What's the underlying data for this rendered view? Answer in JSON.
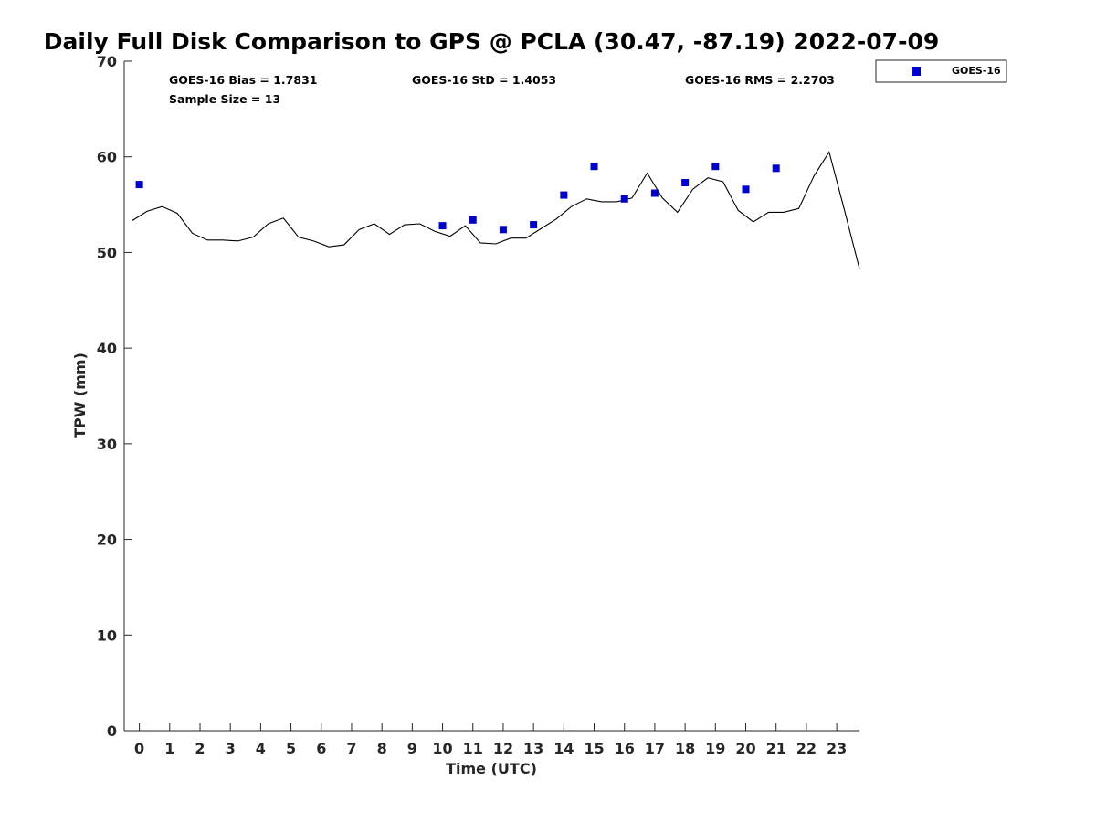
{
  "chart_data": {
    "type": "scatter",
    "title": "Daily Full Disk Comparison to GPS @ PCLA (30.47, -87.19) 2022-07-09",
    "xlabel": "Time (UTC)",
    "ylabel": "TPW (mm)",
    "xlim": [
      -0.5,
      23.75
    ],
    "ylim": [
      0,
      70
    ],
    "x_ticks": [
      "0",
      "1",
      "2",
      "3",
      "4",
      "5",
      "6",
      "7",
      "8",
      "9",
      "10",
      "11",
      "12",
      "13",
      "14",
      "15",
      "16",
      "17",
      "18",
      "19",
      "20",
      "21",
      "22",
      "23"
    ],
    "y_ticks": [
      "0",
      "10",
      "20",
      "30",
      "40",
      "50",
      "60",
      "70"
    ],
    "grid": false,
    "legend_position": "outside-top-right",
    "stats": [
      "GOES-16 Bias = 1.7831",
      "GOES-16 StD = 1.4053",
      "GOES-16 RMS = 2.2703",
      "Sample Size = 13"
    ],
    "series": [
      {
        "name": "GOES-16",
        "kind": "scatter",
        "marker": "square",
        "color": "#0000cc",
        "points": [
          [
            0,
            57.1
          ],
          [
            10,
            52.8
          ],
          [
            11,
            53.4
          ],
          [
            12,
            52.4
          ],
          [
            13,
            52.9
          ],
          [
            14,
            56.0
          ],
          [
            15,
            59.0
          ],
          [
            16,
            55.6
          ],
          [
            17,
            56.2
          ],
          [
            18,
            57.3
          ],
          [
            19,
            59.0
          ],
          [
            20,
            56.6
          ],
          [
            21,
            58.8
          ]
        ]
      },
      {
        "kind": "line",
        "color": "#000000",
        "points": [
          [
            -0.25,
            53.3
          ],
          [
            0.25,
            54.3
          ],
          [
            0.75,
            54.8
          ],
          [
            1.25,
            54.1
          ],
          [
            1.75,
            52.0
          ],
          [
            2.25,
            51.3
          ],
          [
            2.75,
            51.3
          ],
          [
            3.25,
            51.2
          ],
          [
            3.75,
            51.6
          ],
          [
            4.25,
            53.0
          ],
          [
            4.75,
            53.6
          ],
          [
            5.25,
            51.6
          ],
          [
            5.75,
            51.2
          ],
          [
            6.25,
            50.6
          ],
          [
            6.75,
            50.8
          ],
          [
            7.25,
            52.4
          ],
          [
            7.75,
            53.0
          ],
          [
            8.25,
            51.9
          ],
          [
            8.75,
            52.9
          ],
          [
            9.25,
            53.0
          ],
          [
            9.75,
            52.2
          ],
          [
            10.25,
            51.7
          ],
          [
            10.75,
            52.8
          ],
          [
            11.25,
            51.0
          ],
          [
            11.75,
            50.9
          ],
          [
            12.25,
            51.5
          ],
          [
            12.75,
            51.5
          ],
          [
            13.25,
            52.5
          ],
          [
            13.75,
            53.5
          ],
          [
            14.25,
            54.8
          ],
          [
            14.75,
            55.6
          ],
          [
            15.25,
            55.3
          ],
          [
            15.75,
            55.3
          ],
          [
            16.25,
            55.7
          ],
          [
            16.75,
            58.3
          ],
          [
            17.25,
            55.7
          ],
          [
            17.75,
            54.2
          ],
          [
            18.25,
            56.6
          ],
          [
            18.75,
            57.8
          ],
          [
            19.25,
            57.4
          ],
          [
            19.75,
            54.4
          ],
          [
            20.25,
            53.2
          ],
          [
            20.75,
            54.2
          ],
          [
            21.25,
            54.2
          ],
          [
            21.75,
            54.6
          ],
          [
            22.25,
            58.0
          ],
          [
            22.75,
            60.5
          ],
          [
            23.25,
            54.5
          ],
          [
            23.75,
            48.3
          ]
        ]
      }
    ]
  }
}
